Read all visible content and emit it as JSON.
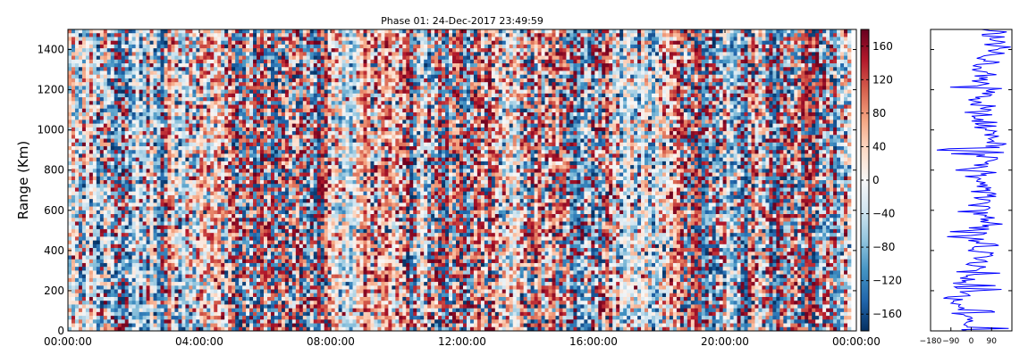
{
  "chart_data": [
    {
      "type": "heatmap",
      "title": "Phase 01: 24-Dec-2017 23:49:59",
      "xlabel": "",
      "ylabel": "Range (Km)",
      "x_ticks": [
        "00:00:00",
        "04:00:00",
        "08:00:00",
        "12:00:00",
        "16:00:00",
        "20:00:00",
        "00:00:00"
      ],
      "y_ticks": [
        0,
        200,
        400,
        600,
        800,
        1000,
        1200,
        1400
      ],
      "xlim": [
        "00:00:00",
        "00:00:00"
      ],
      "ylim": [
        0,
        1500
      ],
      "value_range": [
        -180,
        180
      ],
      "colormap": "RdBu_r",
      "colorbar_ticks": [
        -160,
        -120,
        -80,
        -40,
        0,
        40,
        80,
        120,
        160
      ],
      "grid": false,
      "n_time_bins": 220,
      "n_range_bins": 80
    },
    {
      "type": "line",
      "title": "",
      "xlabel": "",
      "ylabel": "",
      "x_ticks": [
        "−180",
        "−90",
        "0",
        "90"
      ],
      "xlim": [
        -180,
        180
      ],
      "ylim": [
        0,
        1500
      ],
      "line_color": "#0000ff",
      "grid": false
    }
  ],
  "colors": {
    "colormap_stops": [
      "#053061",
      "#2166ac",
      "#4393c3",
      "#92c5de",
      "#d1e5f0",
      "#f7f7f7",
      "#fddbc7",
      "#f4a582",
      "#d6604d",
      "#b2182b",
      "#67001f"
    ],
    "line": "#0000ff",
    "axes": "#000000"
  }
}
